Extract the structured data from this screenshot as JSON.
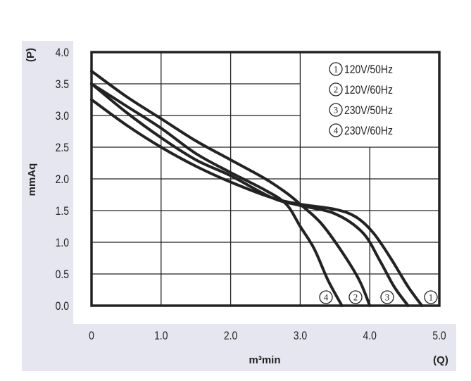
{
  "chart_data": {
    "type": "line",
    "title": "",
    "xlabel": "m³min",
    "xunit": "(Q)",
    "ylabel": "mmAq",
    "yunit": "(P)",
    "xlim": [
      0,
      5.0
    ],
    "ylim": [
      0,
      4.0
    ],
    "x_ticks": [
      "0",
      "1.0",
      "2.0",
      "3.0",
      "4.0",
      "5.0"
    ],
    "y_ticks": [
      "0.0",
      "0.5",
      "1.0",
      "1.5",
      "2.0",
      "2.5",
      "3.0",
      "3.5",
      "4.0"
    ],
    "grid": true,
    "legend_position": "top-right",
    "series": [
      {
        "id": "1",
        "name": "120V/50Hz",
        "points": [
          [
            0,
            3.25
          ],
          [
            0.5,
            2.85
          ],
          [
            1.0,
            2.5
          ],
          [
            1.5,
            2.2
          ],
          [
            2.0,
            1.95
          ],
          [
            2.6,
            1.7
          ],
          [
            3.0,
            1.6
          ],
          [
            3.5,
            1.52
          ],
          [
            3.8,
            1.4
          ],
          [
            4.05,
            1.15
          ],
          [
            4.3,
            0.75
          ],
          [
            4.55,
            0.3
          ],
          [
            4.75,
            0
          ]
        ]
      },
      {
        "id": "2",
        "name": "120V/60Hz",
        "points": [
          [
            0,
            3.7
          ],
          [
            0.5,
            3.3
          ],
          [
            1.0,
            2.95
          ],
          [
            1.5,
            2.6
          ],
          [
            2.0,
            2.3
          ],
          [
            2.5,
            2.0
          ],
          [
            2.8,
            1.78
          ],
          [
            3.0,
            1.6
          ],
          [
            3.3,
            1.3
          ],
          [
            3.6,
            0.85
          ],
          [
            3.85,
            0.4
          ],
          [
            4.0,
            0
          ]
        ]
      },
      {
        "id": "3",
        "name": "230V/50Hz",
        "points": [
          [
            0,
            3.5
          ],
          [
            0.5,
            3.05
          ],
          [
            1.0,
            2.65
          ],
          [
            1.5,
            2.3
          ],
          [
            2.0,
            2.05
          ],
          [
            2.6,
            1.7
          ],
          [
            3.0,
            1.58
          ],
          [
            3.5,
            1.45
          ],
          [
            3.9,
            1.15
          ],
          [
            4.15,
            0.7
          ],
          [
            4.35,
            0.3
          ],
          [
            4.55,
            0
          ]
        ]
      },
      {
        "id": "4",
        "name": "230V/60Hz",
        "points": [
          [
            0,
            3.5
          ],
          [
            0.5,
            3.15
          ],
          [
            1.0,
            2.8
          ],
          [
            1.5,
            2.4
          ],
          [
            2.0,
            2.1
          ],
          [
            2.5,
            1.82
          ],
          [
            2.8,
            1.6
          ],
          [
            3.0,
            1.25
          ],
          [
            3.2,
            0.9
          ],
          [
            3.4,
            0.4
          ],
          [
            3.6,
            0
          ]
        ]
      }
    ],
    "end_labels": [
      "4",
      "2",
      "3",
      "1"
    ]
  }
}
